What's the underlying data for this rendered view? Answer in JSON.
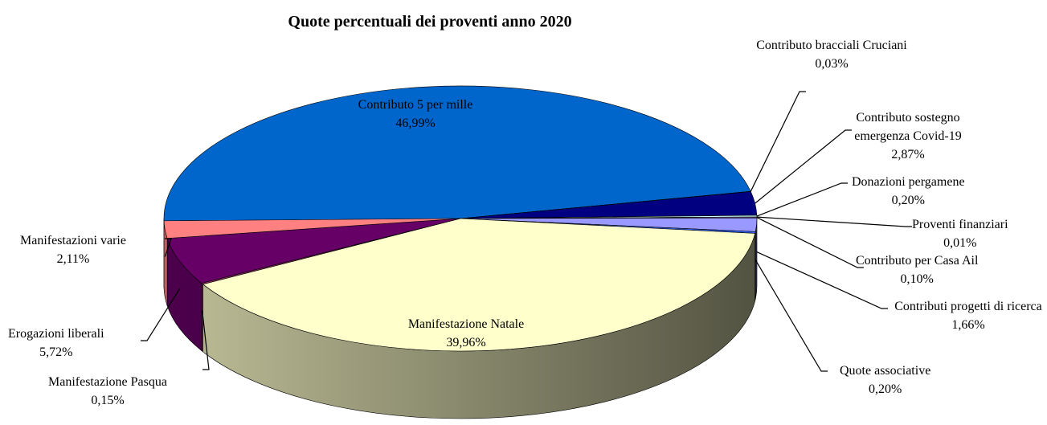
{
  "chart_data": {
    "type": "pie",
    "title": "Quote percentuali dei proventi anno 2020",
    "categories": [
      "Contributo 5 per mille",
      "Contributo bracciali Cruciani",
      "Contributo sostegno emergenza Covid-19",
      "Donazioni pergamene",
      "Proventi finanziari",
      "Contributo per Casa Ail",
      "Contributi progetti di ricerca",
      "Quote associative",
      "Manifestazione Natale",
      "Manifestazione Pasqua",
      "Erogazioni liberali",
      "Manifestazioni varie"
    ],
    "values": [
      46.99,
      0.03,
      2.87,
      0.2,
      0.01,
      0.1,
      1.66,
      0.2,
      39.96,
      0.15,
      5.72,
      2.11
    ],
    "value_labels": [
      "46,99%",
      "0,03%",
      "2,87%",
      "0,20%",
      "0,01%",
      "0,10%",
      "1,66%",
      "0,20%",
      "39,96%",
      "0,15%",
      "5,72%",
      "2,11%"
    ],
    "colors": [
      "#0066cc",
      "#00ccff",
      "#000080",
      "#ccffff",
      "#ffcc99",
      "#cc99ff",
      "#9999ff",
      "#3366ff",
      "#ffffcc",
      "#993366",
      "#660066",
      "#ff8080"
    ]
  }
}
